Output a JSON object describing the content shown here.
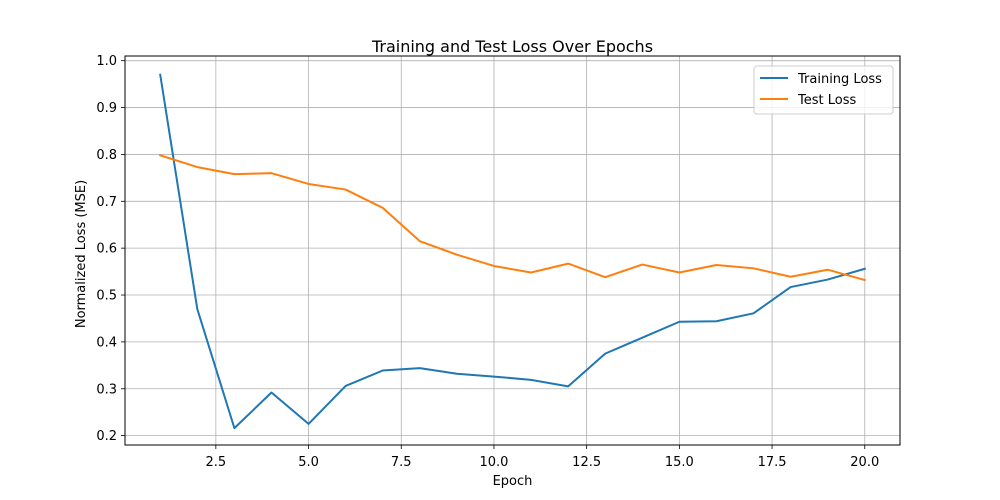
{
  "chart_data": {
    "type": "line",
    "title": "Training and Test Loss Over Epochs",
    "xlabel": "Epoch",
    "ylabel": "Normalized Loss (MSE)",
    "xlim": [
      0.05,
      20.95
    ],
    "ylim": [
      0.18,
      1.01
    ],
    "grid": true,
    "legend_position": "top-right",
    "x": [
      1,
      2,
      3,
      4,
      5,
      6,
      7,
      8,
      9,
      10,
      11,
      12,
      13,
      14,
      15,
      16,
      17,
      18,
      19,
      20
    ],
    "x_ticks": [
      2.5,
      5.0,
      7.5,
      10.0,
      12.5,
      15.0,
      17.5,
      20.0
    ],
    "x_tick_labels": [
      "2.5",
      "5.0",
      "7.5",
      "10.0",
      "12.5",
      "15.0",
      "17.5",
      "20.0"
    ],
    "y_ticks": [
      0.2,
      0.3,
      0.4,
      0.5,
      0.6,
      0.7,
      0.8,
      0.9,
      1.0
    ],
    "y_tick_labels": [
      "0.2",
      "0.3",
      "0.4",
      "0.5",
      "0.6",
      "0.7",
      "0.8",
      "0.9",
      "1.0"
    ],
    "series": [
      {
        "name": "Training Loss",
        "color": "#1f77b4",
        "values": [
          0.97,
          0.47,
          0.216,
          0.292,
          0.225,
          0.306,
          0.339,
          0.344,
          0.332,
          0.326,
          0.319,
          0.305,
          0.375,
          0.409,
          0.443,
          0.444,
          0.461,
          0.517,
          0.533,
          0.556
        ]
      },
      {
        "name": "Test Loss",
        "color": "#ff7f0e",
        "values": [
          0.798,
          0.773,
          0.758,
          0.76,
          0.737,
          0.725,
          0.686,
          0.615,
          0.586,
          0.562,
          0.548,
          0.567,
          0.538,
          0.565,
          0.548,
          0.564,
          0.557,
          0.539,
          0.554,
          0.532
        ]
      }
    ]
  }
}
